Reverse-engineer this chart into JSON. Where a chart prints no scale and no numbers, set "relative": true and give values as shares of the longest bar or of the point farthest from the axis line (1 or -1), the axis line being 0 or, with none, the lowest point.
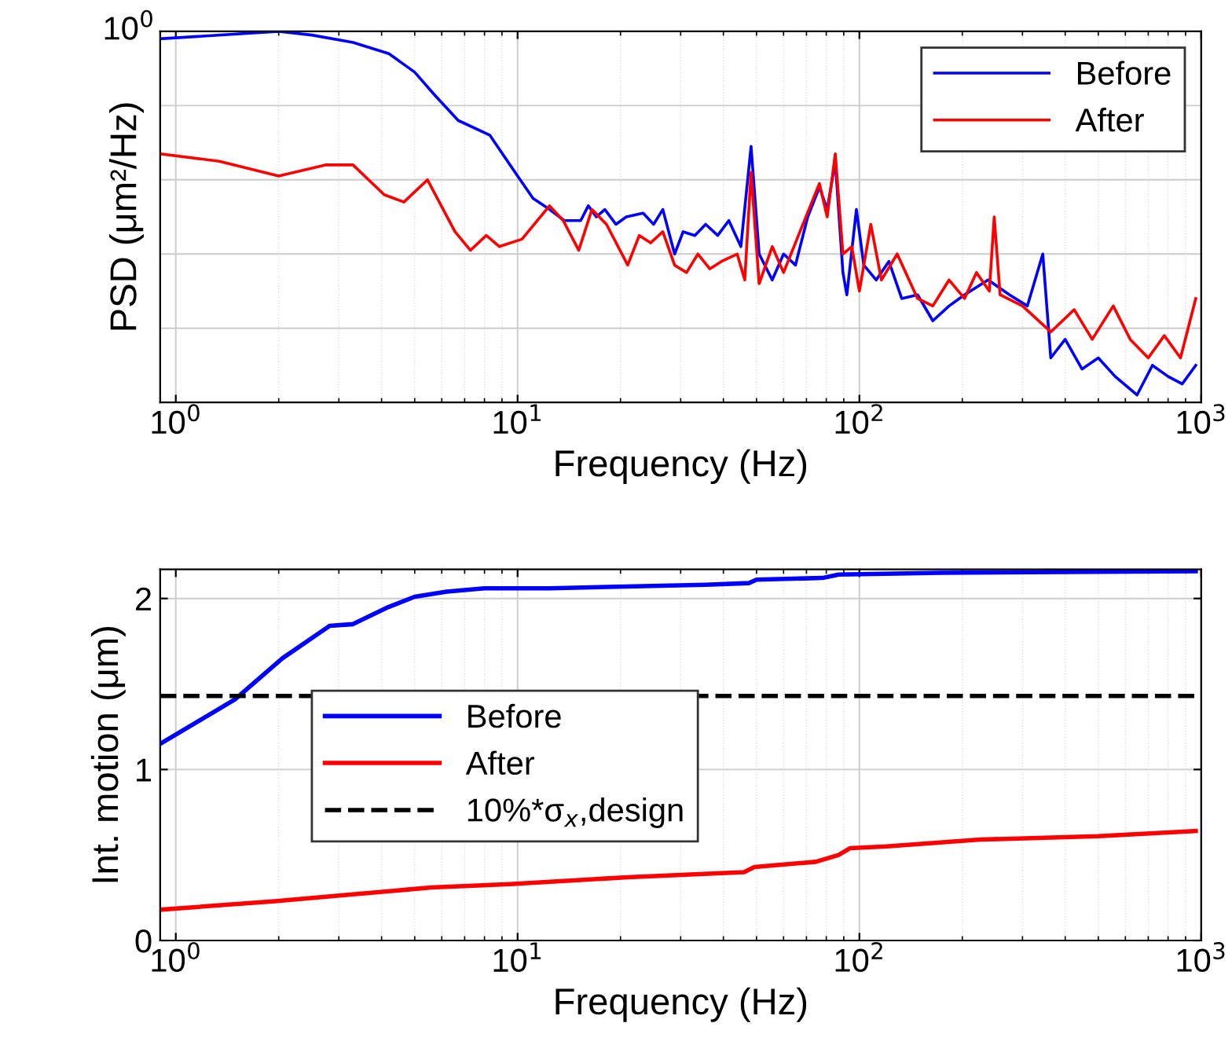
{
  "chart_data": [
    {
      "type": "line",
      "ylabel": "PSD (μm²/Hz)",
      "xlabel": "Frequency (Hz)",
      "relative": true,
      "log": "x",
      "grid": true,
      "legend": "top right",
      "xlim": [
        0.9,
        1000
      ],
      "xticks": [
        {
          "value": 1,
          "label": "10$^{0}$"
        },
        {
          "value": 10,
          "label": "10$^{1}$"
        },
        {
          "value": 100,
          "label": "10$^{2}$"
        },
        {
          "value": 1000,
          "label": "10$^{3}$"
        }
      ],
      "annotations": [
        "10$^{0}$"
      ],
      "series": [
        {
          "name": "Before",
          "color": "#0000ff",
          "x": [
            0.9,
            2.0,
            2.5,
            3.3,
            4.2,
            5.0,
            5.7,
            6.7,
            8.3,
            10,
            11.1,
            12.4,
            13.7,
            15.3,
            16.1,
            17.0,
            18.0,
            19.4,
            20.8,
            23.3,
            25.0,
            26.6,
            28.8,
            30.5,
            33.0,
            35.5,
            38.5,
            41.5,
            45,
            48.2,
            50.9,
            55.6,
            60,
            65,
            70.6,
            76.4,
            80.5,
            85,
            89.5,
            91.9,
            98,
            103,
            112,
            122,
            133,
            148,
            164,
            183,
            203,
            238,
            275,
            310,
            344,
            363,
            400,
            448,
            500,
            560,
            649,
            720,
            800,
            880,
            964
          ],
          "values": [
            0.98,
            1.0,
            0.99,
            0.97,
            0.94,
            0.89,
            0.83,
            0.76,
            0.72,
            0.61,
            0.55,
            0.52,
            0.49,
            0.49,
            0.53,
            0.5,
            0.52,
            0.48,
            0.5,
            0.51,
            0.48,
            0.52,
            0.4,
            0.46,
            0.45,
            0.48,
            0.45,
            0.49,
            0.42,
            0.69,
            0.4,
            0.33,
            0.4,
            0.37,
            0.5,
            0.58,
            0.52,
            0.65,
            0.35,
            0.29,
            0.52,
            0.37,
            0.33,
            0.38,
            0.28,
            0.29,
            0.22,
            0.26,
            0.29,
            0.33,
            0.29,
            0.26,
            0.4,
            0.12,
            0.17,
            0.09,
            0.12,
            0.07,
            0.02,
            0.1,
            0.07,
            0.05,
            0.1
          ]
        },
        {
          "name": "After",
          "color": "#ff0000",
          "x": [
            0.9,
            1.34,
            2.0,
            2.74,
            3.3,
            4.07,
            4.65,
            5.45,
            6.56,
            7.28,
            8.1,
            8.85,
            10.3,
            12.4,
            13.6,
            15.1,
            16.5,
            18.2,
            21,
            22.7,
            24.5,
            26.6,
            28.8,
            31.2,
            33.7,
            36.5,
            39.5,
            43.9,
            46.2,
            48.2,
            50.9,
            55.6,
            60,
            67,
            76.4,
            80.5,
            85,
            89.5,
            95,
            100,
            108,
            116,
            129,
            148,
            164,
            183,
            203,
            220,
            240,
            248,
            258,
            300,
            363,
            425,
            480,
            553,
            620,
            700,
            780,
            870,
            964
          ],
          "values": [
            0.67,
            0.65,
            0.61,
            0.64,
            0.64,
            0.56,
            0.54,
            0.6,
            0.46,
            0.41,
            0.45,
            0.42,
            0.44,
            0.53,
            0.49,
            0.41,
            0.52,
            0.48,
            0.37,
            0.45,
            0.43,
            0.46,
            0.37,
            0.35,
            0.4,
            0.36,
            0.38,
            0.4,
            0.33,
            0.62,
            0.32,
            0.42,
            0.35,
            0.46,
            0.59,
            0.5,
            0.67,
            0.4,
            0.42,
            0.3,
            0.48,
            0.33,
            0.4,
            0.28,
            0.26,
            0.33,
            0.28,
            0.35,
            0.3,
            0.5,
            0.29,
            0.26,
            0.19,
            0.25,
            0.17,
            0.26,
            0.17,
            0.12,
            0.18,
            0.12,
            0.28
          ]
        }
      ]
    },
    {
      "type": "line",
      "ylabel": "Int. motion (μm)",
      "xlabel": "Frequency (Hz)",
      "log": "x",
      "grid": true,
      "legend": "center left",
      "xlim": [
        0.9,
        1000
      ],
      "xticks": [
        {
          "value": 1,
          "label": "10$^{0}$"
        },
        {
          "value": 10,
          "label": "10$^{1}$"
        },
        {
          "value": 100,
          "label": "10$^{2}$"
        },
        {
          "value": 1000,
          "label": "10$^{3}$"
        }
      ],
      "ylim": [
        0,
        2.17
      ],
      "yticks": [
        0,
        1,
        2
      ],
      "ref_lines": [
        {
          "axis": "y",
          "value": 1.43,
          "label": "10%*σ$_{x}$,design",
          "color": "#000000",
          "line_style": "dashed"
        }
      ],
      "series": [
        {
          "name": "Before",
          "color": "#0000ff",
          "x": [
            0.9,
            1.49,
            2.05,
            2.82,
            3.3,
            4.19,
            5.0,
            6.2,
            8.0,
            12.4,
            35.5,
            47.5,
            50,
            78,
            87,
            173,
            964
          ],
          "values": [
            1.15,
            1.41,
            1.65,
            1.84,
            1.85,
            1.95,
            2.01,
            2.04,
            2.06,
            2.06,
            2.08,
            2.09,
            2.11,
            2.12,
            2.14,
            2.15,
            2.16
          ]
        },
        {
          "name": "After",
          "color": "#ff0000",
          "x": [
            0.9,
            1.95,
            3.3,
            5.6,
            9.5,
            21,
            46,
            49.3,
            74.5,
            87,
            94,
            120,
            226,
            498,
            964
          ],
          "values": [
            0.18,
            0.23,
            0.27,
            0.31,
            0.33,
            0.37,
            0.4,
            0.43,
            0.46,
            0.5,
            0.54,
            0.55,
            0.59,
            0.61,
            0.64
          ]
        }
      ]
    }
  ]
}
